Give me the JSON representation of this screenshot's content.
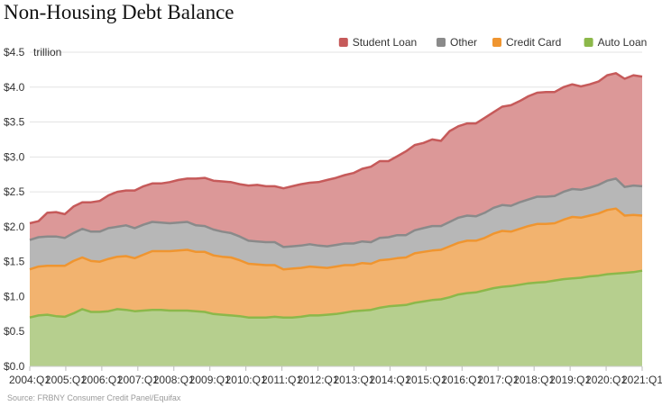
{
  "title": "Non-Housing Debt Balance",
  "source": "Source: FRBNY Consumer Credit Panel/Equifax",
  "chart_data": {
    "type": "area",
    "stacked": true,
    "title": "Non-Housing Debt Balance",
    "unit_label": "trillion",
    "xlabel": "",
    "ylabel": "",
    "ylim": [
      0,
      4.5
    ],
    "yticks": [
      0.0,
      0.5,
      1.0,
      1.5,
      2.0,
      2.5,
      3.0,
      3.5,
      4.0,
      4.5
    ],
    "ytick_labels": [
      "$0.0",
      "$0.5",
      "$1.0",
      "$1.5",
      "$2.0",
      "$2.5",
      "$3.0",
      "$3.5",
      "$4.0",
      "$4.5"
    ],
    "xtick_labels": [
      "2004:Q1",
      "2005:Q1",
      "2006:Q1",
      "2007:Q1",
      "2008:Q1",
      "2009:Q1",
      "2010:Q1",
      "2011:Q1",
      "2012:Q1",
      "2013:Q1",
      "2014:Q1",
      "2015:Q1",
      "2016:Q1",
      "2017:Q1",
      "2018:Q1",
      "2019:Q1",
      "2020:Q1",
      "2021:Q1"
    ],
    "grid": "horizontal",
    "legend_position": "top-right",
    "x_start": "2004:Q1",
    "x_end": "2021:Q1",
    "series": [
      {
        "name": "Auto Loan",
        "color": "#8cb84a",
        "fill": "#b6cf8e",
        "values": [
          0.7,
          0.73,
          0.74,
          0.72,
          0.71,
          0.76,
          0.82,
          0.78,
          0.78,
          0.79,
          0.82,
          0.81,
          0.79,
          0.8,
          0.81,
          0.81,
          0.8,
          0.8,
          0.8,
          0.79,
          0.78,
          0.75,
          0.74,
          0.73,
          0.72,
          0.7,
          0.7,
          0.7,
          0.71,
          0.7,
          0.7,
          0.71,
          0.73,
          0.73,
          0.74,
          0.75,
          0.77,
          0.79,
          0.8,
          0.81,
          0.84,
          0.86,
          0.87,
          0.88,
          0.91,
          0.93,
          0.95,
          0.96,
          0.99,
          1.03,
          1.05,
          1.06,
          1.09,
          1.12,
          1.14,
          1.15,
          1.17,
          1.19,
          1.2,
          1.21,
          1.23,
          1.25,
          1.26,
          1.27,
          1.29,
          1.3,
          1.32,
          1.33,
          1.34,
          1.35,
          1.37
        ]
      },
      {
        "name": "Credit Card",
        "color": "#ef9530",
        "fill": "#f2b36f",
        "values": [
          0.69,
          0.7,
          0.7,
          0.72,
          0.73,
          0.75,
          0.74,
          0.73,
          0.72,
          0.75,
          0.75,
          0.77,
          0.76,
          0.8,
          0.84,
          0.84,
          0.85,
          0.86,
          0.87,
          0.85,
          0.86,
          0.84,
          0.83,
          0.83,
          0.8,
          0.77,
          0.76,
          0.75,
          0.74,
          0.69,
          0.7,
          0.7,
          0.7,
          0.69,
          0.67,
          0.68,
          0.68,
          0.66,
          0.68,
          0.66,
          0.68,
          0.67,
          0.68,
          0.68,
          0.71,
          0.71,
          0.71,
          0.71,
          0.73,
          0.74,
          0.75,
          0.74,
          0.75,
          0.78,
          0.8,
          0.78,
          0.8,
          0.82,
          0.84,
          0.83,
          0.82,
          0.85,
          0.88,
          0.86,
          0.87,
          0.89,
          0.92,
          0.93,
          0.82,
          0.82,
          0.79
        ]
      },
      {
        "name": "Other",
        "color": "#8a8a8a",
        "fill": "#b7b7b7",
        "values": [
          0.42,
          0.42,
          0.42,
          0.42,
          0.4,
          0.4,
          0.41,
          0.42,
          0.43,
          0.44,
          0.43,
          0.44,
          0.43,
          0.43,
          0.42,
          0.41,
          0.4,
          0.4,
          0.4,
          0.38,
          0.37,
          0.37,
          0.36,
          0.35,
          0.34,
          0.33,
          0.33,
          0.33,
          0.33,
          0.32,
          0.32,
          0.32,
          0.32,
          0.31,
          0.31,
          0.31,
          0.31,
          0.31,
          0.31,
          0.31,
          0.32,
          0.32,
          0.33,
          0.32,
          0.33,
          0.34,
          0.35,
          0.34,
          0.35,
          0.36,
          0.36,
          0.35,
          0.36,
          0.37,
          0.37,
          0.37,
          0.38,
          0.38,
          0.39,
          0.39,
          0.39,
          0.4,
          0.4,
          0.4,
          0.4,
          0.41,
          0.42,
          0.43,
          0.41,
          0.42,
          0.42
        ]
      },
      {
        "name": "Student Loan",
        "color": "#c65a5a",
        "fill": "#dc9898",
        "values": [
          0.24,
          0.23,
          0.34,
          0.35,
          0.34,
          0.38,
          0.38,
          0.42,
          0.44,
          0.47,
          0.5,
          0.5,
          0.54,
          0.55,
          0.55,
          0.56,
          0.59,
          0.61,
          0.62,
          0.67,
          0.69,
          0.7,
          0.72,
          0.73,
          0.75,
          0.79,
          0.81,
          0.8,
          0.8,
          0.84,
          0.86,
          0.88,
          0.88,
          0.91,
          0.95,
          0.96,
          0.98,
          1.01,
          1.04,
          1.08,
          1.1,
          1.09,
          1.13,
          1.2,
          1.22,
          1.22,
          1.24,
          1.22,
          1.3,
          1.31,
          1.32,
          1.33,
          1.36,
          1.37,
          1.41,
          1.44,
          1.45,
          1.48,
          1.49,
          1.5,
          1.49,
          1.5,
          1.5,
          1.48,
          1.48,
          1.48,
          1.51,
          1.51,
          1.55,
          1.58,
          1.57
        ]
      }
    ]
  },
  "legend": {
    "items": [
      {
        "label": "Student Loan",
        "color": "#c65a5a"
      },
      {
        "label": "Other",
        "color": "#8a8a8a"
      },
      {
        "label": "Credit Card",
        "color": "#ef9530"
      },
      {
        "label": "Auto Loan",
        "color": "#8cb84a"
      }
    ]
  }
}
